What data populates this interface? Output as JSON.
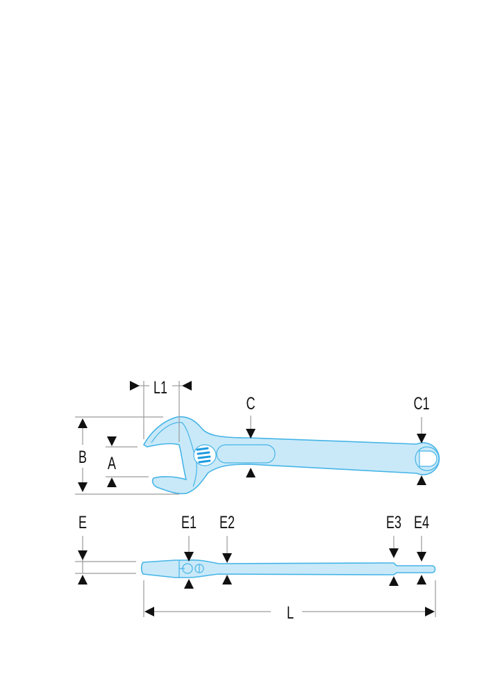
{
  "diagram": {
    "subject": "adjustable wrench dimensions",
    "colors": {
      "body_fill": "#c9e9f9",
      "body_outline": "#45b4e6",
      "worm_gear": "#1a9be0",
      "arrows": "#111111",
      "dimension_lines": "#9a9a9a"
    },
    "labels": {
      "L1": "L1",
      "C": "C",
      "C1": "C1",
      "B": "B",
      "A": "A",
      "E": "E",
      "E1": "E1",
      "E2": "E2",
      "E3": "E3",
      "E4": "E4",
      "L": "L"
    }
  }
}
